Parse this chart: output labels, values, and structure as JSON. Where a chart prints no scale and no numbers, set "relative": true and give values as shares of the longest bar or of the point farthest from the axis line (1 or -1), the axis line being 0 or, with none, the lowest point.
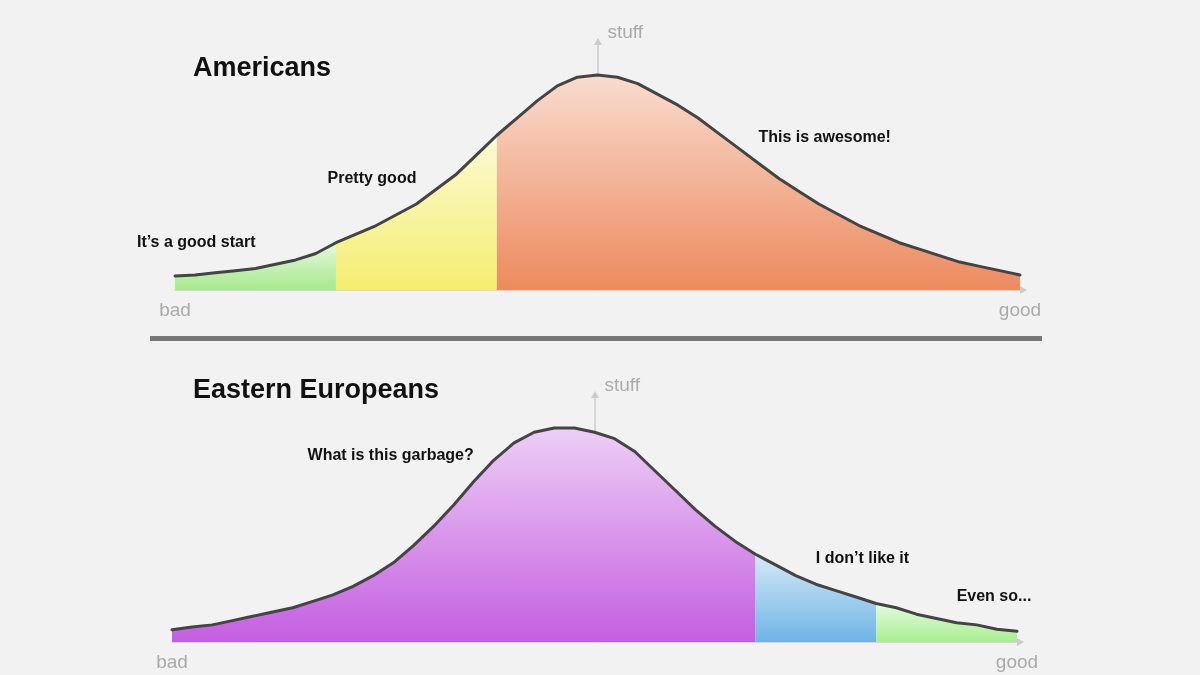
{
  "chart_data": [
    {
      "type": "area",
      "title": "Americans",
      "ylabel": "stuff",
      "relative": true,
      "marker": "none",
      "categories": [
        "bad",
        null,
        null,
        null,
        null,
        null,
        null,
        null,
        null,
        null,
        null,
        null,
        null,
        null,
        null,
        null,
        null,
        null,
        null,
        null,
        null,
        null,
        null,
        null,
        null,
        null,
        null,
        null,
        null,
        null,
        null,
        null,
        null,
        null,
        null,
        null,
        null,
        null,
        null,
        null,
        null,
        null,
        "good"
      ],
      "series": [
        {
          "name": "It’s a good start",
          "color": "#a8e88e",
          "values": [
            0.065,
            0.07,
            0.08,
            0.09,
            0.1,
            0.12,
            0.14,
            0.17,
            0.22,
            null,
            null,
            null,
            null,
            null,
            null,
            null,
            null,
            null,
            null,
            null,
            null,
            null,
            null,
            null,
            null,
            null,
            null,
            null,
            null,
            null,
            null,
            null,
            null,
            null,
            null,
            null,
            null,
            null,
            null,
            null,
            null,
            null,
            null
          ]
        },
        {
          "name": "Pretty good",
          "color": "#f4ee70",
          "values": [
            null,
            null,
            null,
            null,
            null,
            null,
            null,
            null,
            0.22,
            0.26,
            0.3,
            0.35,
            0.4,
            0.47,
            0.54,
            0.63,
            0.72,
            null,
            null,
            null,
            null,
            null,
            null,
            null,
            null,
            null,
            null,
            null,
            null,
            null,
            null,
            null,
            null,
            null,
            null,
            null,
            null,
            null,
            null,
            null,
            null,
            null,
            null
          ]
        },
        {
          "name": "This is awesome!",
          "color": "#ec8a5e",
          "values": [
            null,
            null,
            null,
            null,
            null,
            null,
            null,
            null,
            null,
            null,
            null,
            null,
            null,
            null,
            null,
            null,
            0.72,
            0.8,
            0.88,
            0.95,
            0.99,
            1.0,
            0.99,
            0.96,
            0.91,
            0.86,
            0.8,
            0.73,
            0.66,
            0.59,
            0.52,
            0.46,
            0.4,
            0.35,
            0.3,
            0.26,
            0.22,
            0.19,
            0.16,
            0.13,
            0.11,
            0.09,
            0.07
          ]
        },
        {
          "type": "line",
          "color": "#444444",
          "values": [
            0.065,
            0.07,
            0.08,
            0.09,
            0.1,
            0.12,
            0.14,
            0.17,
            0.22,
            0.26,
            0.3,
            0.35,
            0.4,
            0.47,
            0.54,
            0.63,
            0.72,
            0.8,
            0.88,
            0.95,
            0.99,
            1.0,
            0.99,
            0.96,
            0.91,
            0.86,
            0.8,
            0.73,
            0.66,
            0.59,
            0.52,
            0.46,
            0.4,
            0.35,
            0.3,
            0.26,
            0.22,
            0.19,
            0.16,
            0.13,
            0.11,
            0.09,
            0.07
          ]
        }
      ]
    },
    {
      "type": "area",
      "title": "Eastern Europeans",
      "ylabel": "stuff",
      "relative": true,
      "marker": "none",
      "categories": [
        "bad",
        null,
        null,
        null,
        null,
        null,
        null,
        null,
        null,
        null,
        null,
        null,
        null,
        null,
        null,
        null,
        null,
        null,
        null,
        null,
        null,
        null,
        null,
        null,
        null,
        null,
        null,
        null,
        null,
        null,
        null,
        null,
        null,
        null,
        null,
        null,
        null,
        null,
        null,
        null,
        null,
        null,
        "good"
      ],
      "series": [
        {
          "name": "What is this garbage?",
          "color": "#c45ee0",
          "values": [
            0.057,
            0.07,
            0.08,
            0.1,
            0.12,
            0.14,
            0.16,
            0.19,
            0.22,
            0.26,
            0.31,
            0.37,
            0.45,
            0.54,
            0.64,
            0.75,
            0.85,
            0.93,
            0.98,
            1.0,
            1.0,
            0.98,
            0.95,
            0.89,
            0.8,
            0.71,
            0.62,
            0.54,
            0.47,
            0.41,
            null,
            null,
            null,
            null,
            null,
            null,
            null,
            null,
            null,
            null,
            null,
            null,
            null
          ]
        },
        {
          "name": "I don’t like it",
          "color": "#6fb4e4",
          "values": [
            null,
            null,
            null,
            null,
            null,
            null,
            null,
            null,
            null,
            null,
            null,
            null,
            null,
            null,
            null,
            null,
            null,
            null,
            null,
            null,
            null,
            null,
            null,
            null,
            null,
            null,
            null,
            null,
            null,
            0.41,
            0.36,
            0.31,
            0.27,
            0.24,
            0.21,
            0.18,
            null,
            null,
            null,
            null,
            null,
            null,
            null
          ]
        },
        {
          "name": "Even so...",
          "color": "#a8ee90",
          "values": [
            null,
            null,
            null,
            null,
            null,
            null,
            null,
            null,
            null,
            null,
            null,
            null,
            null,
            null,
            null,
            null,
            null,
            null,
            null,
            null,
            null,
            null,
            null,
            null,
            null,
            null,
            null,
            null,
            null,
            null,
            null,
            null,
            null,
            null,
            null,
            0.18,
            0.16,
            0.13,
            0.11,
            0.09,
            0.08,
            0.06,
            0.05
          ]
        },
        {
          "type": "line",
          "color": "#444444",
          "values": [
            0.057,
            0.07,
            0.08,
            0.1,
            0.12,
            0.14,
            0.16,
            0.19,
            0.22,
            0.26,
            0.31,
            0.37,
            0.45,
            0.54,
            0.64,
            0.75,
            0.85,
            0.93,
            0.98,
            1.0,
            1.0,
            0.98,
            0.95,
            0.89,
            0.8,
            0.71,
            0.62,
            0.54,
            0.47,
            0.41,
            0.36,
            0.31,
            0.27,
            0.24,
            0.21,
            0.18,
            0.16,
            0.13,
            0.11,
            0.09,
            0.08,
            0.06,
            0.05
          ]
        }
      ]
    }
  ]
}
